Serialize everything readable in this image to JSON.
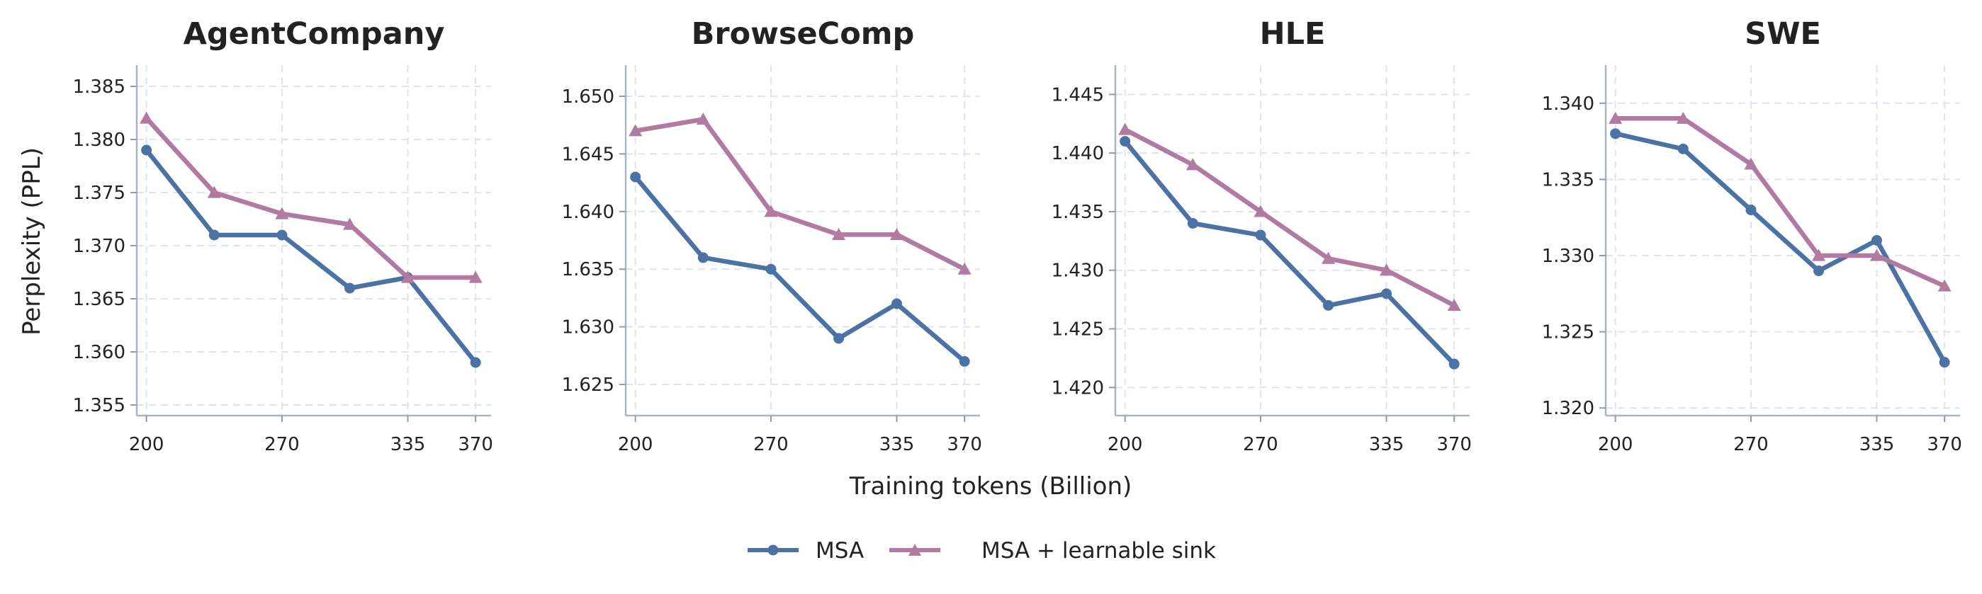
{
  "figure": {
    "ylabel": "Perplexity (PPL)",
    "xlabel": "Training tokens (Billion)"
  },
  "legend": {
    "position": "bottom-center",
    "items": [
      {
        "label": "MSA",
        "color": "#4c72a4",
        "marker": "circle"
      },
      {
        "label": "MSA + learnable sink",
        "color": "#b07aa1",
        "marker": "triangle"
      }
    ]
  },
  "chart_data": [
    {
      "type": "line",
      "title": "AgentCompany",
      "x": [
        200,
        235,
        270,
        305,
        335,
        370
      ],
      "xticks": [
        200,
        270,
        335,
        370
      ],
      "yticks": [
        "1.355",
        "1.360",
        "1.365",
        "1.370",
        "1.375",
        "1.380",
        "1.385"
      ],
      "xlim": [
        195,
        378
      ],
      "ylim": [
        1.354,
        1.387
      ],
      "grid": true,
      "series": [
        {
          "name": "MSA",
          "values": [
            1.379,
            1.371,
            1.371,
            1.366,
            1.367,
            1.359
          ]
        },
        {
          "name": "MSA + learnable sink",
          "values": [
            1.382,
            1.375,
            1.373,
            1.372,
            1.367,
            1.367
          ]
        }
      ]
    },
    {
      "type": "line",
      "title": "BrowseComp",
      "x": [
        200,
        235,
        270,
        305,
        335,
        370
      ],
      "xticks": [
        200,
        270,
        335,
        370
      ],
      "yticks": [
        "1.625",
        "1.630",
        "1.635",
        "1.640",
        "1.645",
        "1.650"
      ],
      "xlim": [
        195,
        378
      ],
      "ylim": [
        1.6223,
        1.6527
      ],
      "grid": true,
      "series": [
        {
          "name": "MSA",
          "values": [
            1.643,
            1.636,
            1.635,
            1.629,
            1.632,
            1.627
          ]
        },
        {
          "name": "MSA + learnable sink",
          "values": [
            1.647,
            1.648,
            1.64,
            1.638,
            1.638,
            1.635
          ]
        }
      ]
    },
    {
      "type": "line",
      "title": "HLE",
      "x": [
        200,
        235,
        270,
        305,
        335,
        370
      ],
      "xticks": [
        200,
        270,
        335,
        370
      ],
      "yticks": [
        "1.420",
        "1.425",
        "1.430",
        "1.435",
        "1.440",
        "1.445"
      ],
      "xlim": [
        195,
        378
      ],
      "ylim": [
        1.4176,
        1.4475
      ],
      "grid": true,
      "series": [
        {
          "name": "MSA",
          "values": [
            1.441,
            1.434,
            1.433,
            1.427,
            1.428,
            1.422
          ]
        },
        {
          "name": "MSA + learnable sink",
          "values": [
            1.442,
            1.439,
            1.435,
            1.431,
            1.43,
            1.427
          ]
        }
      ]
    },
    {
      "type": "line",
      "title": "SWE",
      "x": [
        200,
        235,
        270,
        305,
        335,
        370
      ],
      "xticks": [
        200,
        270,
        335,
        370
      ],
      "yticks": [
        "1.320",
        "1.325",
        "1.330",
        "1.335",
        "1.340"
      ],
      "xlim": [
        195,
        378
      ],
      "ylim": [
        1.3195,
        1.3425
      ],
      "grid": true,
      "series": [
        {
          "name": "MSA",
          "values": [
            1.338,
            1.337,
            1.333,
            1.329,
            1.331,
            1.323
          ]
        },
        {
          "name": "MSA + learnable sink",
          "values": [
            1.339,
            1.339,
            1.336,
            1.33,
            1.33,
            1.328
          ]
        }
      ]
    }
  ]
}
